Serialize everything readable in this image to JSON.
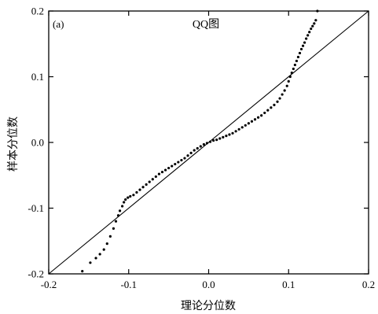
{
  "chart_data": {
    "type": "scatter",
    "title": "QQ图",
    "panel_label": "(a)",
    "xlabel": "理论分位数",
    "ylabel": "样本分位数",
    "xlim": [
      -0.2,
      0.2
    ],
    "ylim": [
      -0.2,
      0.2
    ],
    "x_ticks": [
      -0.2,
      -0.1,
      0.0,
      0.1,
      0.2
    ],
    "y_ticks": [
      -0.2,
      -0.1,
      0.0,
      0.1,
      0.2
    ],
    "x_tick_labels": [
      "-0.2",
      "-0.1",
      "0.0",
      "0.1",
      "0.2"
    ],
    "y_tick_labels": [
      "-0.2",
      "-0.1",
      "0.0",
      "0.1",
      "0.2"
    ],
    "grid": false,
    "reference_line": {
      "slope": 1,
      "intercept": 0
    },
    "marker_color": "#000000",
    "points": [
      [
        -0.158,
        -0.196
      ],
      [
        -0.148,
        -0.183
      ],
      [
        -0.141,
        -0.176
      ],
      [
        -0.136,
        -0.17
      ],
      [
        -0.131,
        -0.163
      ],
      [
        -0.127,
        -0.154
      ],
      [
        -0.123,
        -0.143
      ],
      [
        -0.119,
        -0.131
      ],
      [
        -0.116,
        -0.12
      ],
      [
        -0.113,
        -0.111
      ],
      [
        -0.111,
        -0.104
      ],
      [
        -0.108,
        -0.097
      ],
      [
        -0.106,
        -0.091
      ],
      [
        -0.104,
        -0.087
      ],
      [
        -0.101,
        -0.084
      ],
      [
        -0.098,
        -0.082
      ],
      [
        -0.094,
        -0.08
      ],
      [
        -0.09,
        -0.076
      ],
      [
        -0.086,
        -0.072
      ],
      [
        -0.082,
        -0.068
      ],
      [
        -0.078,
        -0.064
      ],
      [
        -0.074,
        -0.06
      ],
      [
        -0.07,
        -0.056
      ],
      [
        -0.066,
        -0.052
      ],
      [
        -0.062,
        -0.048
      ],
      [
        -0.058,
        -0.045
      ],
      [
        -0.054,
        -0.042
      ],
      [
        -0.05,
        -0.039
      ],
      [
        -0.046,
        -0.036
      ],
      [
        -0.042,
        -0.033
      ],
      [
        -0.038,
        -0.03
      ],
      [
        -0.034,
        -0.027
      ],
      [
        -0.03,
        -0.024
      ],
      [
        -0.026,
        -0.02
      ],
      [
        -0.022,
        -0.016
      ],
      [
        -0.018,
        -0.012
      ],
      [
        -0.014,
        -0.009
      ],
      [
        -0.01,
        -0.006
      ],
      [
        -0.006,
        -0.003
      ],
      [
        -0.002,
        -0.001
      ],
      [
        0.002,
        0.001
      ],
      [
        0.006,
        0.003
      ],
      [
        0.01,
        0.004
      ],
      [
        0.014,
        0.006
      ],
      [
        0.018,
        0.008
      ],
      [
        0.022,
        0.01
      ],
      [
        0.026,
        0.012
      ],
      [
        0.03,
        0.014
      ],
      [
        0.034,
        0.017
      ],
      [
        0.038,
        0.02
      ],
      [
        0.042,
        0.023
      ],
      [
        0.046,
        0.026
      ],
      [
        0.05,
        0.029
      ],
      [
        0.054,
        0.032
      ],
      [
        0.058,
        0.035
      ],
      [
        0.062,
        0.038
      ],
      [
        0.066,
        0.041
      ],
      [
        0.07,
        0.045
      ],
      [
        0.074,
        0.049
      ],
      [
        0.078,
        0.053
      ],
      [
        0.082,
        0.057
      ],
      [
        0.086,
        0.062
      ],
      [
        0.089,
        0.067
      ],
      [
        0.092,
        0.073
      ],
      [
        0.095,
        0.079
      ],
      [
        0.098,
        0.086
      ],
      [
        0.1,
        0.093
      ],
      [
        0.102,
        0.1
      ],
      [
        0.104,
        0.106
      ],
      [
        0.106,
        0.112
      ],
      [
        0.108,
        0.118
      ],
      [
        0.11,
        0.124
      ],
      [
        0.112,
        0.13
      ],
      [
        0.114,
        0.136
      ],
      [
        0.116,
        0.142
      ],
      [
        0.118,
        0.147
      ],
      [
        0.12,
        0.152
      ],
      [
        0.122,
        0.158
      ],
      [
        0.124,
        0.163
      ],
      [
        0.126,
        0.168
      ],
      [
        0.128,
        0.173
      ],
      [
        0.13,
        0.177
      ],
      [
        0.132,
        0.181
      ],
      [
        0.134,
        0.186
      ],
      [
        0.136,
        0.2
      ]
    ]
  }
}
